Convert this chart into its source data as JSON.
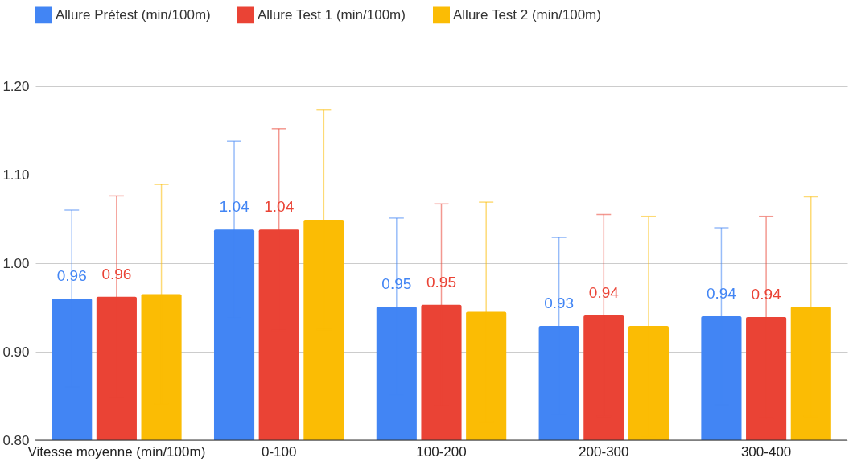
{
  "chart_data": {
    "type": "bar",
    "categories": [
      "Vitesse moyenne (min/100m)",
      "0-100",
      "100-200",
      "200-300",
      "300-400"
    ],
    "series": [
      {
        "name": "Allure Prétest (min/100m)",
        "color": "#4285f4",
        "values": [
          0.96,
          1.038,
          0.951,
          0.929,
          0.94
        ],
        "errors": [
          0.1,
          0.1,
          0.1,
          0.1,
          0.1
        ],
        "value_labels": [
          "0.96",
          "1.04",
          "0.95",
          "0.93",
          "0.94"
        ]
      },
      {
        "name": "Allure Test 1 (min/100m)",
        "color": "#ea4335",
        "values": [
          0.962,
          1.038,
          0.953,
          0.941,
          0.939
        ],
        "errors": [
          0.114,
          0.114,
          0.114,
          0.114,
          0.114
        ],
        "value_labels": [
          "0.96",
          "1.04",
          "0.95",
          "0.94",
          "0.94"
        ]
      },
      {
        "name": "Allure Test 2 (min/100m)",
        "color": "#fbbc04",
        "values": [
          0.965,
          1.049,
          0.945,
          0.929,
          0.951
        ],
        "errors": [
          0.124,
          0.124,
          0.124,
          0.124,
          0.124
        ]
      }
    ],
    "ylim": [
      0.8,
      1.2
    ],
    "yticks": [
      {
        "value": 0.8,
        "label": "0.80"
      },
      {
        "value": 0.9,
        "label": "0.90"
      },
      {
        "value": 1.0,
        "label": "1.00"
      },
      {
        "value": 1.1,
        "label": "1.10"
      },
      {
        "value": 1.2,
        "label": "1.20"
      }
    ],
    "grid": "y",
    "legend": "top"
  }
}
